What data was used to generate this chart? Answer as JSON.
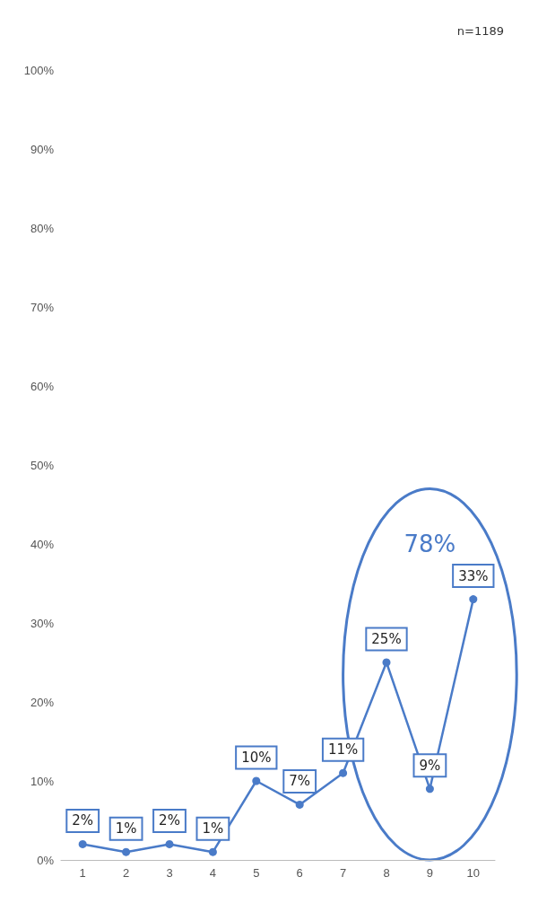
{
  "chart_data": {
    "type": "line",
    "categories": [
      "1",
      "2",
      "3",
      "4",
      "5",
      "6",
      "7",
      "8",
      "9",
      "10"
    ],
    "values": [
      2,
      1,
      2,
      1,
      10,
      7,
      11,
      25,
      9,
      33
    ],
    "value_labels": [
      "2%",
      "1%",
      "2%",
      "1%",
      "10%",
      "7%",
      "11%",
      "25%",
      "9%",
      "33%"
    ],
    "color": "#4a7bc8",
    "marker": "circle",
    "line_style": "solid",
    "ylim": [
      0,
      100
    ],
    "yticks": [
      {
        "value": 0,
        "label": "0%"
      },
      {
        "value": 10,
        "label": "10%"
      },
      {
        "value": 20,
        "label": "20%"
      },
      {
        "value": 30,
        "label": "30%"
      },
      {
        "value": 40,
        "label": "40%"
      },
      {
        "value": 50,
        "label": "50%"
      },
      {
        "value": 60,
        "label": "60%"
      },
      {
        "value": 70,
        "label": "70%"
      },
      {
        "value": 80,
        "label": "80%"
      },
      {
        "value": 90,
        "label": "90%"
      },
      {
        "value": 100,
        "label": "100%"
      }
    ],
    "annotations": [
      "n=1189",
      "78%"
    ],
    "grid": false
  }
}
